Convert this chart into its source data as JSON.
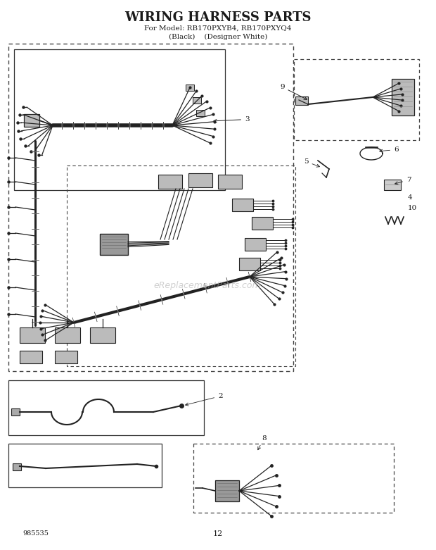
{
  "title": "WIRING HARNESS PARTS",
  "subtitle1": "For Model: RB170PXYB4, RB170PXYQ4",
  "subtitle2": "(Black)    (Designer White)",
  "watermark": "eReplacementParts.com",
  "part_number": "985535",
  "page_number": "12",
  "bg_color": "#ffffff",
  "text_color": "#1a1a1a",
  "line_color": "#222222",
  "dashed_color": "#444444"
}
